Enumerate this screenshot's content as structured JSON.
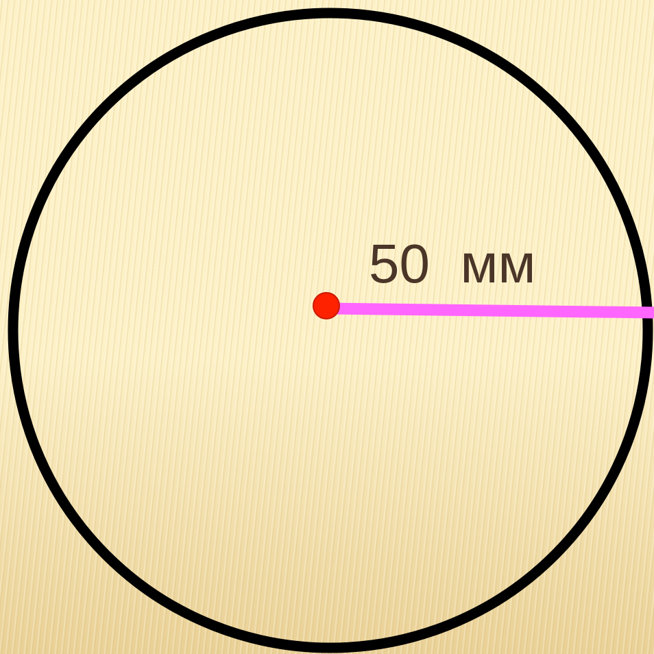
{
  "diagram": {
    "radius_label": "50  мм"
  },
  "colors": {
    "background_light": "#fdf1c8",
    "background_dark": "#e9d096",
    "circle_stroke": "#000000",
    "radius_line": "#ff66ff",
    "center_point": "#ff2200",
    "label_text": "#4a3528"
  }
}
